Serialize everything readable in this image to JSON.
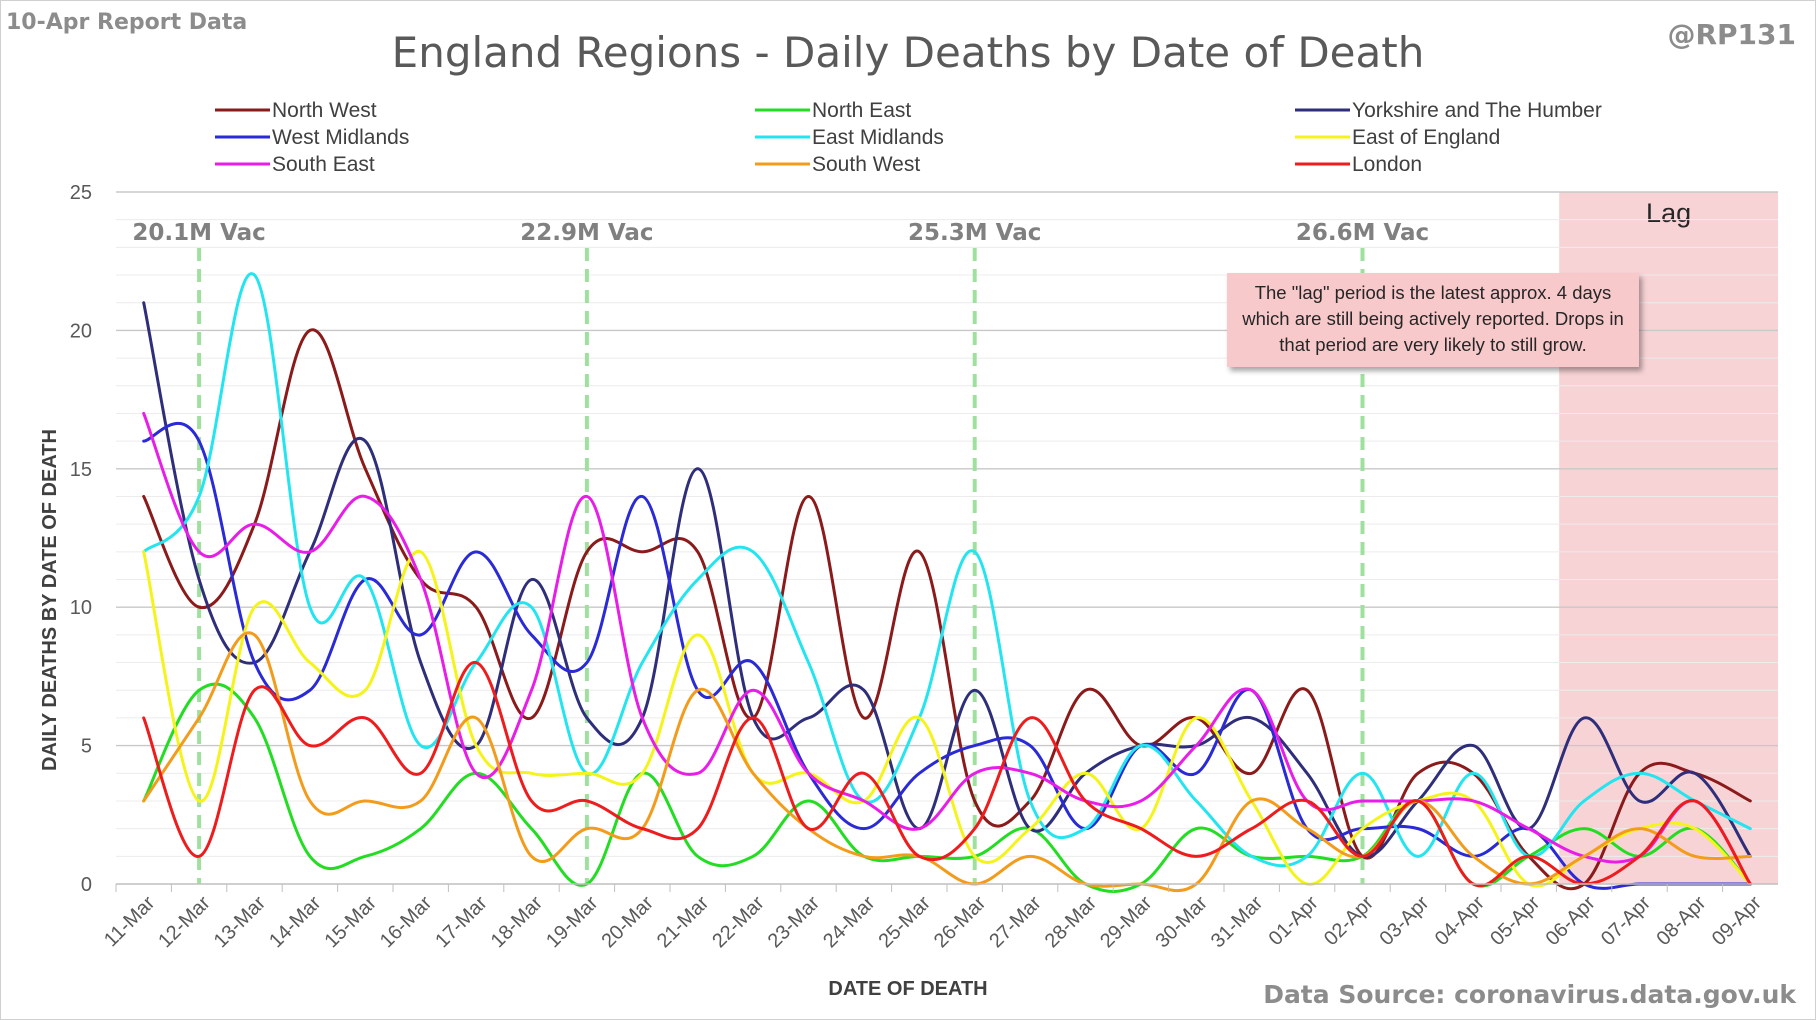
{
  "header": {
    "report_date": "10-Apr Report Data",
    "author": "@RP131",
    "source": "Data Source: coronavirus.data.gov.uk"
  },
  "lag_note": "The \"lag\" period is the latest approx. 4 days which are still being actively reported. Drops in that period are very likely to still grow.",
  "chart_data": {
    "type": "line",
    "title": "England Regions - Daily Deaths by Date of Death",
    "xlabel": "DATE OF DEATH",
    "ylabel": "DAILY DEATHS BY DATE OF DEATH",
    "ylim": [
      0,
      25
    ],
    "yticks": [
      0,
      5,
      10,
      15,
      20,
      25
    ],
    "grid": true,
    "legend_position": "top",
    "smoothed": true,
    "categories": [
      "11-Mar",
      "12-Mar",
      "13-Mar",
      "14-Mar",
      "15-Mar",
      "16-Mar",
      "17-Mar",
      "18-Mar",
      "19-Mar",
      "20-Mar",
      "21-Mar",
      "22-Mar",
      "23-Mar",
      "24-Mar",
      "25-Mar",
      "26-Mar",
      "27-Mar",
      "28-Mar",
      "29-Mar",
      "30-Mar",
      "31-Mar",
      "01-Apr",
      "02-Apr",
      "03-Apr",
      "04-Apr",
      "05-Apr",
      "06-Apr",
      "07-Apr",
      "08-Apr",
      "09-Apr"
    ],
    "lag_region": {
      "label": "Lag",
      "from": "06-Apr",
      "to": "09-Apr",
      "color": "#f8d3d6"
    },
    "vaccination_markers": [
      {
        "x": "12-Mar",
        "label": "20.1M Vac"
      },
      {
        "x": "19-Mar",
        "label": "22.9M Vac"
      },
      {
        "x": "26-Mar",
        "label": "25.3M Vac"
      },
      {
        "x": "02-Apr",
        "label": "26.6M Vac"
      }
    ],
    "series": [
      {
        "name": "North West",
        "color": "#8b1a1a",
        "values": [
          14,
          10,
          13,
          20,
          15,
          11,
          10,
          6,
          12,
          12,
          12,
          6,
          14,
          6,
          12,
          3,
          3,
          7,
          5,
          6,
          4,
          7,
          1,
          4,
          4,
          1,
          0,
          4,
          4,
          3
        ]
      },
      {
        "name": "North East",
        "color": "#22dd22",
        "values": [
          3,
          7,
          6,
          1,
          1,
          2,
          4,
          2,
          0,
          4,
          1,
          1,
          3,
          1,
          1,
          1,
          2,
          0,
          0,
          2,
          1,
          1,
          1,
          3,
          0,
          1,
          2,
          1,
          2,
          0
        ]
      },
      {
        "name": "Yorkshire and The Humber",
        "color": "#2e2e7a",
        "values": [
          21,
          11,
          8,
          12,
          16,
          8,
          5,
          11,
          6,
          6,
          15,
          6,
          6,
          7,
          2,
          7,
          2,
          4,
          5,
          5,
          6,
          4,
          1,
          3,
          5,
          2,
          6,
          3,
          4,
          1
        ]
      },
      {
        "name": "West Midlands",
        "color": "#2a2ad6",
        "values": [
          16,
          16,
          8,
          7,
          11,
          9,
          12,
          9,
          8,
          14,
          7,
          8,
          4,
          2,
          4,
          5,
          5,
          2,
          5,
          4,
          7,
          2,
          2,
          2,
          1,
          2,
          0,
          0,
          0,
          0
        ]
      },
      {
        "name": "East Midlands",
        "color": "#22e5f0",
        "values": [
          12,
          14,
          22,
          10,
          11,
          5,
          8,
          10,
          4,
          8,
          11,
          12,
          8,
          3,
          6,
          12,
          3,
          2,
          5,
          3,
          1,
          1,
          4,
          1,
          4,
          1,
          3,
          4,
          3,
          2
        ]
      },
      {
        "name": "East of England",
        "color": "#f4f41a",
        "values": [
          12,
          3,
          10,
          8,
          7,
          12,
          5,
          4,
          4,
          4,
          9,
          4,
          4,
          3,
          6,
          1,
          2,
          4,
          2,
          6,
          3,
          0,
          2,
          3,
          3,
          0,
          1,
          2,
          2,
          0
        ]
      },
      {
        "name": "South East",
        "color": "#e81ee8",
        "values": [
          17,
          12,
          13,
          12,
          14,
          11,
          4,
          7,
          14,
          6,
          4,
          7,
          4,
          3,
          2,
          4,
          4,
          3,
          3,
          5,
          7,
          3,
          3,
          3,
          3,
          2,
          1,
          1,
          3,
          0
        ]
      },
      {
        "name": "South West",
        "color": "#f39c1c",
        "values": [
          3,
          6,
          9,
          3,
          3,
          3,
          6,
          1,
          2,
          2,
          7,
          4,
          2,
          1,
          1,
          0,
          1,
          0,
          0,
          0,
          3,
          2,
          1,
          3,
          1,
          0,
          1,
          2,
          1,
          1
        ]
      },
      {
        "name": "London",
        "color": "#ee1c1c",
        "values": [
          6,
          1,
          7,
          5,
          6,
          4,
          8,
          3,
          3,
          2,
          2,
          6,
          2,
          4,
          1,
          2,
          6,
          3,
          2,
          1,
          2,
          3,
          1,
          3,
          0,
          1,
          0,
          1,
          3,
          0
        ]
      }
    ]
  }
}
